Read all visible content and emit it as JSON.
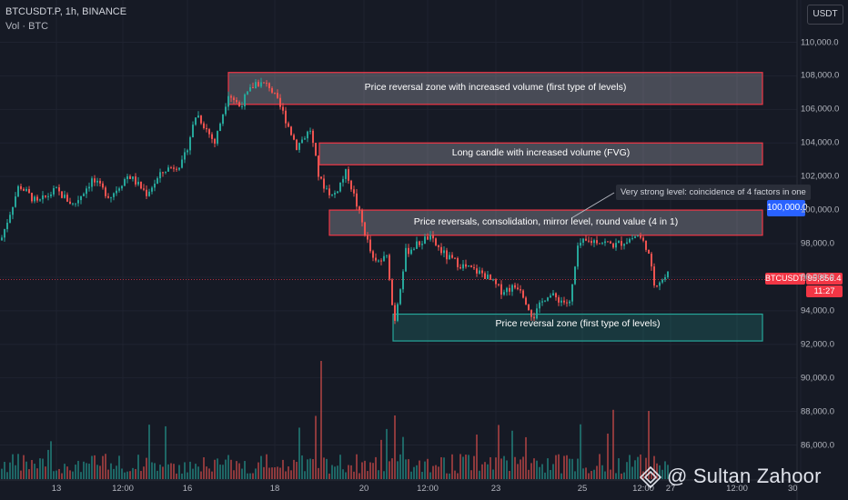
{
  "header": {
    "symbol_line": "BTCUSDT.P, 1h, BINANCE",
    "volume_line": "Vol · BTC",
    "currency": "USDT"
  },
  "chart_data": {
    "type": "candlestick",
    "symbol": "BTCUSDT.P",
    "timeframe": "1h",
    "exchange": "BINANCE",
    "ylim": [
      84000,
      112000
    ],
    "y_ticks": [
      "110,000.0",
      "108,000.0",
      "106,000.0",
      "104,000.0",
      "102,000.0",
      "100,000.0",
      "98,000.0",
      "96,000.0",
      "94,000.0",
      "92,000.0",
      "90,000.0",
      "88,000.0",
      "86,000.0"
    ],
    "x_ticks": [
      "13",
      "12:00",
      "16",
      "18",
      "20",
      "12:00",
      "23",
      "25",
      "12:00",
      "27",
      "12:00",
      "30"
    ],
    "price_path": [
      {
        "x": 0,
        "y": 98200
      },
      {
        "x": 20,
        "y": 101500
      },
      {
        "x": 40,
        "y": 100400
      },
      {
        "x": 60,
        "y": 101200
      },
      {
        "x": 80,
        "y": 100300
      },
      {
        "x": 100,
        "y": 101800
      },
      {
        "x": 120,
        "y": 100800
      },
      {
        "x": 140,
        "y": 102100
      },
      {
        "x": 160,
        "y": 101000
      },
      {
        "x": 180,
        "y": 102400
      },
      {
        "x": 200,
        "y": 102800
      },
      {
        "x": 215,
        "y": 105800
      },
      {
        "x": 235,
        "y": 104000
      },
      {
        "x": 250,
        "y": 107000
      },
      {
        "x": 262,
        "y": 106200
      },
      {
        "x": 280,
        "y": 107600
      },
      {
        "x": 295,
        "y": 107400
      },
      {
        "x": 310,
        "y": 105800
      },
      {
        "x": 325,
        "y": 103800
      },
      {
        "x": 340,
        "y": 104800
      },
      {
        "x": 350,
        "y": 101800
      },
      {
        "x": 365,
        "y": 100800
      },
      {
        "x": 380,
        "y": 102300
      },
      {
        "x": 395,
        "y": 99600
      },
      {
        "x": 410,
        "y": 96800
      },
      {
        "x": 425,
        "y": 97200
      },
      {
        "x": 432,
        "y": 93200
      },
      {
        "x": 445,
        "y": 97500
      },
      {
        "x": 470,
        "y": 98400
      },
      {
        "x": 490,
        "y": 97200
      },
      {
        "x": 510,
        "y": 96600
      },
      {
        "x": 530,
        "y": 96200
      },
      {
        "x": 550,
        "y": 95200
      },
      {
        "x": 570,
        "y": 95500
      },
      {
        "x": 585,
        "y": 93600
      },
      {
        "x": 600,
        "y": 95000
      },
      {
        "x": 625,
        "y": 94400
      },
      {
        "x": 635,
        "y": 98000
      },
      {
        "x": 655,
        "y": 98200
      },
      {
        "x": 675,
        "y": 97900
      },
      {
        "x": 700,
        "y": 98500
      },
      {
        "x": 710,
        "y": 97800
      },
      {
        "x": 718,
        "y": 95600
      },
      {
        "x": 730,
        "y": 96000
      },
      {
        "x": 735,
        "y": 96300
      }
    ],
    "zones": [
      {
        "label": "Price reversal zone with increased volume (first type of levels)",
        "from_x": 251,
        "to_x": 838,
        "top": 108200,
        "bottom": 106300,
        "color": "#f23645"
      },
      {
        "label": "Long candle with increased volume (FVG)",
        "from_x": 351,
        "to_x": 838,
        "top": 104000,
        "bottom": 102700,
        "color": "#f23645"
      },
      {
        "label": "Price reversals, consolidation, mirror level, round value (4 in 1)",
        "from_x": 362,
        "to_x": 838,
        "top": 100000,
        "bottom": 98500,
        "color": "#f23645"
      },
      {
        "label": "Price reversal zone (first type of levels)",
        "from_x": 432,
        "to_x": 838,
        "top": 93800,
        "bottom": 92200,
        "color": "#26a69a"
      }
    ],
    "annotation": "Very strong level: coincidence of 4 factors in one",
    "price_tags": {
      "level": "100,000.0",
      "last_symbol": "BTCUSDT.P",
      "last_price": "95,856.4",
      "countdown": "11:27"
    },
    "last_price_value": 95856.4,
    "level_value": 100000
  },
  "watermark": "@ Sultan Zahoor",
  "colors": {
    "background": "#161a25",
    "up": "#26a69a",
    "down": "#ef5350",
    "zone_red": "#f23645",
    "zone_green": "#26a69a",
    "level_tag": "#2962ff"
  }
}
